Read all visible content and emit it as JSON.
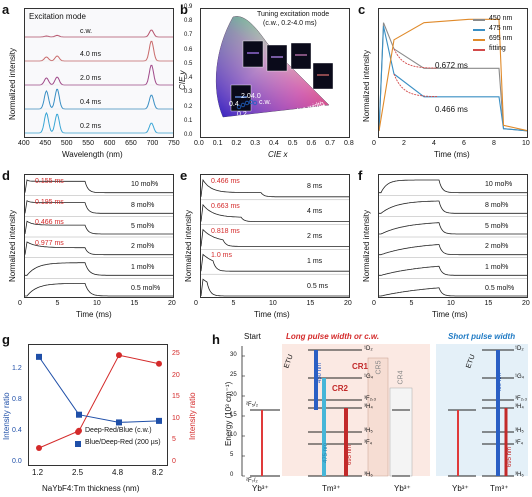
{
  "panels": {
    "a": {
      "label": "a",
      "title": "Excitation mode",
      "xlabel": "Wavelength (nm)",
      "ylabel": "Normalized intensity",
      "xticks": [
        "400",
        "450",
        "500",
        "550",
        "600",
        "650",
        "700",
        "750"
      ],
      "traces": [
        {
          "label": "c.w.",
          "color": "#b5506a"
        },
        {
          "label": "4.0 ms",
          "color": "#c96a6a"
        },
        {
          "label": "2.0 ms",
          "color": "#a04a8a"
        },
        {
          "label": "0.4 ms",
          "color": "#3a8fc4"
        },
        {
          "label": "0.2 ms",
          "color": "#3aa6d6"
        }
      ]
    },
    "b": {
      "label": "b",
      "title": "Tuning excitation mode",
      "subtitle": "(c.w., 0.2-4.0 ms)",
      "xlabel": "CIE x",
      "ylabel": "CIE y",
      "xticks": [
        "0.0",
        "0.1",
        "0.2",
        "0.3",
        "0.4",
        "0.5",
        "0.6",
        "0.7",
        "0.8"
      ],
      "yticks": [
        "0.0",
        "0.1",
        "0.2",
        "0.3",
        "0.4",
        "0.5",
        "0.6",
        "0.7",
        "0.8",
        "0.9"
      ],
      "points": [
        "0.2",
        "0.4",
        "2.0",
        "4.0",
        "c.w."
      ],
      "arrow_text": "Reducing pulse width"
    },
    "c": {
      "label": "c",
      "xlabel": "Time (ms)",
      "ylabel": "Normalized intensity",
      "xticks": [
        "0",
        "2",
        "4",
        "6",
        "8",
        "10"
      ],
      "legend": [
        {
          "name": "450 nm",
          "color": "#8a8a8a"
        },
        {
          "name": "475 nm",
          "color": "#3a8fc4"
        },
        {
          "name": "695 nm",
          "color": "#e08a2a"
        },
        {
          "name": "fitting",
          "color": "#d24a4a"
        }
      ],
      "annotations": [
        "0.672 ms",
        "0.466 ms"
      ]
    },
    "d": {
      "label": "d",
      "xlabel": "Time (ms)",
      "ylabel": "Normalized intensity",
      "xticks": [
        "0",
        "5",
        "10",
        "15",
        "20"
      ],
      "rows": [
        {
          "right": "10 mol%",
          "left": "0.155 ms"
        },
        {
          "right": "8 mol%",
          "left": "0.195 ms"
        },
        {
          "right": "5 mol%",
          "left": "0.466 ms"
        },
        {
          "right": "2 mol%",
          "left": "0.977 ms"
        },
        {
          "right": "1 mol%",
          "left": ""
        },
        {
          "right": "0.5 mol%",
          "left": ""
        }
      ]
    },
    "e": {
      "label": "e",
      "xlabel": "Time (ms)",
      "ylabel": "Normalized intensity",
      "xticks": [
        "0",
        "5",
        "10",
        "15",
        "20"
      ],
      "rows": [
        {
          "right": "8 ms",
          "left": "0.466 ms"
        },
        {
          "right": "4 ms",
          "left": "0.663 ms"
        },
        {
          "right": "2 ms",
          "left": "0.818 ms"
        },
        {
          "right": "1 ms",
          "left": "1.0 ms"
        },
        {
          "right": "0.5 ms",
          "left": ""
        }
      ]
    },
    "f": {
      "label": "f",
      "xlabel": "Time (ms)",
      "ylabel": "Normalized intensity",
      "xticks": [
        "0",
        "5",
        "10",
        "15",
        "20"
      ],
      "rows": [
        {
          "right": "10 mol%"
        },
        {
          "right": "8 mol%"
        },
        {
          "right": "5 mol%"
        },
        {
          "right": "2 mol%"
        },
        {
          "right": "1 mol%"
        },
        {
          "right": "0.5 mol%"
        }
      ]
    },
    "g": {
      "label": "g",
      "xlabel": "NaYbF4:Tm thickness (nm)",
      "ylabel_left": "Intensity ratio",
      "ylabel_right": "Intensity ratio",
      "legend": [
        "Deep-Red/Blue (c.w.)",
        "Blue/Deep-Red (200 µs)"
      ]
    },
    "h": {
      "label": "h",
      "start": "Start",
      "long_title": "Long pulse width or c.w.",
      "short_title": "Short pulse width",
      "ylabel": "Energy (10³ cm⁻¹)",
      "yticks": [
        "0",
        "5",
        "10",
        "15",
        "20",
        "25",
        "30"
      ],
      "ions": [
        "Yb³⁺",
        "Tm³⁺",
        "Yb³⁺",
        "Yb³⁺",
        "Tm³⁺"
      ],
      "levels_tm": [
        "¹D₂",
        "¹G₄",
        "³F₂,₃",
        "³H₄",
        "³H₅",
        "³F₄",
        "³H₆"
      ],
      "yb_levels": [
        "²F₅/₂",
        "²F₇/₂"
      ],
      "transitions": [
        "450 nm",
        "475 nm",
        "695 nm",
        "CR1",
        "CR2",
        "CR4",
        "CR5",
        "ETU"
      ]
    }
  },
  "chart_data": [
    {
      "type": "line",
      "title": "Excitation mode",
      "xlabel": "Wavelength (nm)",
      "ylabel": "Normalized intensity",
      "xlim": [
        400,
        750
      ],
      "series": [
        {
          "name": "c.w.",
          "peaks": [
            [
              450,
              0.05
            ],
            [
              475,
              0.08
            ],
            [
              695,
              0.35
            ]
          ]
        },
        {
          "name": "4.0 ms",
          "peaks": [
            [
              450,
              0.2
            ],
            [
              475,
              0.25
            ],
            [
              695,
              1.0
            ]
          ]
        },
        {
          "name": "2.0 ms",
          "peaks": [
            [
              450,
              0.35
            ],
            [
              475,
              0.4
            ],
            [
              695,
              1.0
            ]
          ]
        },
        {
          "name": "0.4 ms",
          "peaks": [
            [
              450,
              0.9
            ],
            [
              475,
              1.0
            ],
            [
              695,
              0.7
            ]
          ]
        },
        {
          "name": "0.2 ms",
          "peaks": [
            [
              450,
              1.0
            ],
            [
              475,
              0.95
            ],
            [
              695,
              0.5
            ]
          ]
        }
      ]
    },
    {
      "type": "line",
      "xlabel": "Time (ms)",
      "ylabel": "Normalized intensity",
      "xlim": [
        0,
        10
      ],
      "series": [
        {
          "name": "450 nm",
          "x": [
            0,
            0.3,
            1,
            3,
            6,
            8,
            8.3,
            10
          ],
          "y": [
            0,
            0.95,
            0.72,
            0.55,
            0.55,
            0.55,
            0.02,
            0
          ]
        },
        {
          "name": "475 nm",
          "x": [
            0,
            0.3,
            1,
            3,
            6,
            8,
            8.3,
            10
          ],
          "y": [
            0,
            0.92,
            0.5,
            0.3,
            0.3,
            0.3,
            0.02,
            0
          ]
        },
        {
          "name": "695 nm",
          "x": [
            0,
            0.5,
            1,
            3,
            6,
            8,
            8.3,
            10
          ],
          "y": [
            0,
            0.4,
            0.8,
            0.95,
            0.98,
            0.98,
            0.05,
            0
          ]
        }
      ]
    },
    {
      "type": "line",
      "title": "",
      "xlabel": "NaYbF4:Tm thickness (nm)",
      "categories": [
        "1.2",
        "2.5",
        "4.8",
        "8.2"
      ],
      "series": [
        {
          "name": "Deep-Red/Blue (c.w.)",
          "values": [
            3,
            7,
            24.5,
            22.5
          ]
        },
        {
          "name": "Blue/Deep-Red (200 µs)",
          "values": [
            1.35,
            0.6,
            0.5,
            0.52
          ]
        }
      ]
    }
  ]
}
